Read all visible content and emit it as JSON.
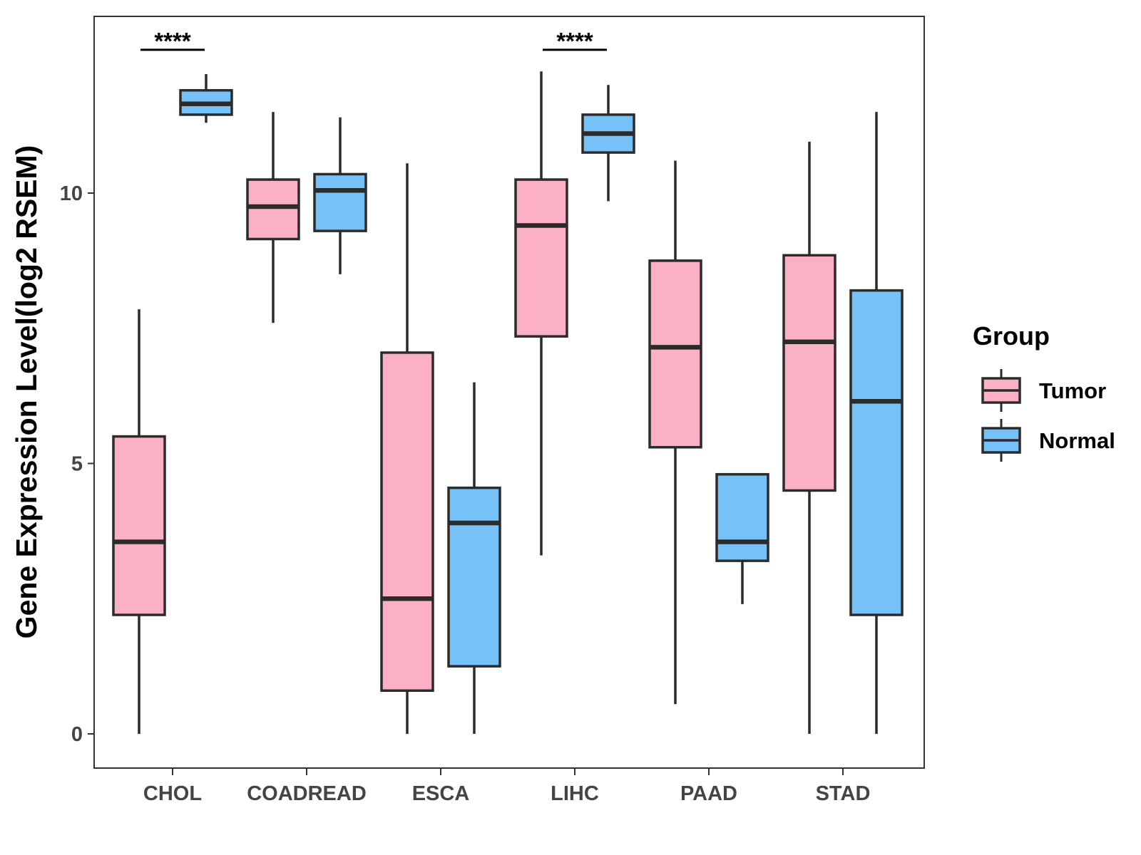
{
  "chart_data": {
    "type": "boxplot",
    "ylabel": "Gene Expression Level(log2 RSEM)",
    "xlabel": "",
    "ylim": [
      -0.6,
      13.3
    ],
    "yticks": [
      0,
      5,
      10
    ],
    "grid": false,
    "categories": [
      "CHOL",
      "COADREAD",
      "ESCA",
      "LIHC",
      "PAAD",
      "STAD"
    ],
    "legend": {
      "title": "Group",
      "placement": "right",
      "entries": [
        {
          "name": "Tumor",
          "color": "#FBB1C3"
        },
        {
          "name": "Normal",
          "color": "#76C1F8"
        }
      ]
    },
    "series": [
      {
        "name": "Tumor",
        "color": "#FBB1C3",
        "boxes": [
          {
            "category": "CHOL",
            "min": 0.0,
            "q1": 2.2,
            "median": 3.55,
            "q3": 5.5,
            "max": 7.85
          },
          {
            "category": "COADREAD",
            "min": 7.6,
            "q1": 9.15,
            "median": 9.75,
            "q3": 10.25,
            "max": 11.5
          },
          {
            "category": "ESCA",
            "min": 0.0,
            "q1": 0.8,
            "median": 2.5,
            "q3": 7.05,
            "max": 10.55
          },
          {
            "category": "LIHC",
            "min": 3.3,
            "q1": 7.35,
            "median": 9.4,
            "q3": 10.25,
            "max": 12.25
          },
          {
            "category": "PAAD",
            "min": 0.55,
            "q1": 5.3,
            "median": 7.15,
            "q3": 8.75,
            "max": 10.6
          },
          {
            "category": "STAD",
            "min": 0.0,
            "q1": 4.5,
            "median": 7.25,
            "q3": 8.85,
            "max": 10.95
          }
        ]
      },
      {
        "name": "Normal",
        "color": "#76C1F8",
        "boxes": [
          {
            "category": "CHOL",
            "min": 11.3,
            "q1": 11.45,
            "median": 11.65,
            "q3": 11.9,
            "max": 12.2
          },
          {
            "category": "COADREAD",
            "min": 8.5,
            "q1": 9.3,
            "median": 10.05,
            "q3": 10.35,
            "max": 11.4
          },
          {
            "category": "ESCA",
            "min": 0.0,
            "q1": 1.25,
            "median": 3.9,
            "q3": 4.55,
            "max": 6.5
          },
          {
            "category": "LIHC",
            "min": 9.85,
            "q1": 10.75,
            "median": 11.1,
            "q3": 11.45,
            "max": 12.0
          },
          {
            "category": "PAAD",
            "min": 2.4,
            "q1": 3.2,
            "median": 3.55,
            "q3": 4.8,
            "max": 4.8
          },
          {
            "category": "STAD",
            "min": 0.0,
            "q1": 2.2,
            "median": 6.15,
            "q3": 8.2,
            "max": 11.5
          }
        ]
      }
    ],
    "annotations": [
      {
        "category": "CHOL",
        "text": "****",
        "y": 12.65
      },
      {
        "category": "LIHC",
        "text": "****",
        "y": 12.65
      }
    ]
  }
}
